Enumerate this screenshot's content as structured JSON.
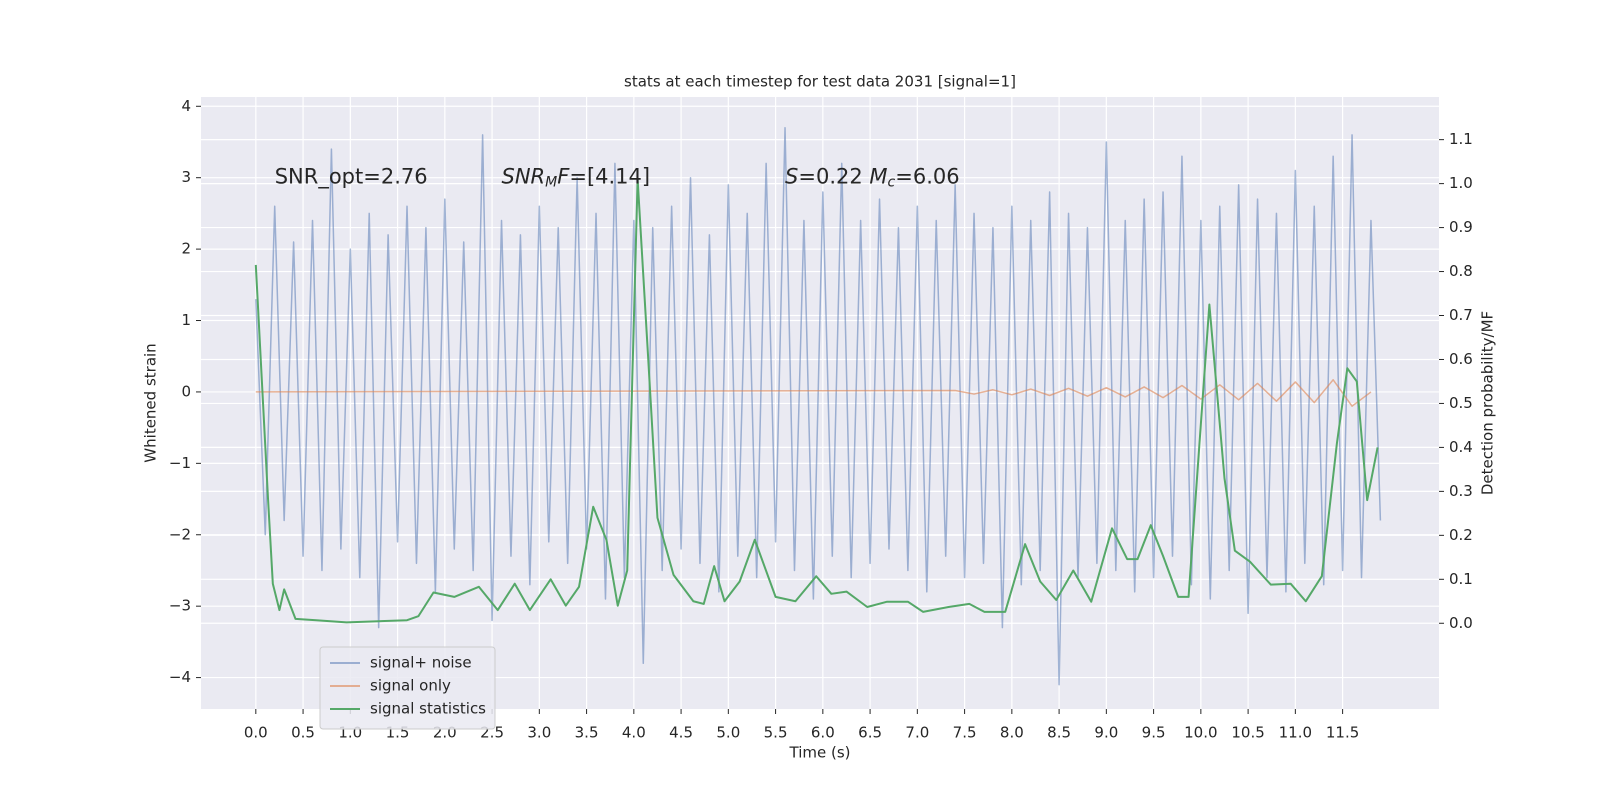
{
  "chart_data": {
    "type": "line",
    "title": "stats at each timestep for test data 2031 [signal=1]",
    "xlabel": "Time (s)",
    "ylabel": "Whitened strain",
    "y2label": "Detection probability/MF",
    "xlim": [
      -0.58,
      12.52
    ],
    "ylim": [
      -4.44,
      4.13
    ],
    "y2lim": [
      -0.195,
      1.197
    ],
    "xticks": [
      {
        "value": 0,
        "label": "0.0"
      },
      0.5,
      {
        "value": 1,
        "label": "1.0"
      },
      1.5,
      {
        "value": 2,
        "label": "2.0"
      },
      2.5,
      {
        "value": 3,
        "label": "3.0"
      },
      3.5,
      {
        "value": 4,
        "label": "4.0"
      },
      4.5,
      {
        "value": 5,
        "label": "5.0"
      },
      5.5,
      {
        "value": 6,
        "label": "6.0"
      },
      6.5,
      {
        "value": 7,
        "label": "7.0"
      },
      7.5,
      {
        "value": 8,
        "label": "8.0"
      },
      8.5,
      {
        "value": 9,
        "label": "9.0"
      },
      9.5,
      {
        "value": 10,
        "label": "10.0"
      },
      10.5,
      {
        "value": 11,
        "label": "11.0"
      },
      11.5
    ],
    "yticks": [
      {
        "value": -4,
        "label": "−4"
      },
      {
        "value": -3,
        "label": "−3"
      },
      {
        "value": -2,
        "label": "−2"
      },
      {
        "value": -1,
        "label": "−1"
      },
      0,
      1,
      2,
      3,
      4
    ],
    "y2ticks": [
      {
        "value": 0,
        "label": "0.0"
      },
      0.1,
      0.2,
      0.3,
      0.4,
      0.5,
      0.6,
      0.7,
      0.8,
      0.9,
      {
        "value": 1,
        "label": "1.0"
      },
      1.1
    ],
    "grid": true,
    "legend": "lower left",
    "annotations": [
      [
        "SNR_opt=2.76"
      ],
      [
        {
          "text": "SNR",
          "italic": true
        },
        {
          "text": "M",
          "sub": true
        },
        {
          "text": "F",
          "italic": true
        },
        "=[4.14]"
      ],
      [
        {
          "text": "S",
          "italic": true
        },
        "=0.22   ",
        {
          "text": "M",
          "italic": true
        },
        {
          "text": "c",
          "sub": true
        },
        "=6.06"
      ]
    ],
    "series": [
      {
        "name": "signal+ noise",
        "color": "#4c72b0",
        "opacity": 0.5,
        "x": [
          0,
          0.1,
          0.2,
          0.3,
          0.4,
          0.5,
          0.6,
          0.7,
          0.8,
          0.9,
          1,
          1.1,
          1.2,
          1.3,
          1.4,
          1.5,
          1.6,
          1.7,
          1.8,
          1.9,
          2,
          2.1,
          2.2,
          2.3,
          2.4,
          2.5,
          2.6,
          2.7,
          2.8,
          2.9,
          3,
          3.1,
          3.2,
          3.3,
          3.4,
          3.5,
          3.6,
          3.7,
          3.8,
          3.9,
          4,
          4.1,
          4.2,
          4.3,
          4.4,
          4.5,
          4.6,
          4.7,
          4.8,
          4.9,
          5,
          5.1,
          5.2,
          5.3,
          5.4,
          5.5,
          5.6,
          5.7,
          5.8,
          5.9,
          6,
          6.1,
          6.2,
          6.3,
          6.4,
          6.5,
          6.6,
          6.7,
          6.8,
          6.9,
          7,
          7.1,
          7.2,
          7.3,
          7.4,
          7.5,
          7.6,
          7.7,
          7.8,
          7.9,
          8,
          8.1,
          8.2,
          8.3,
          8.4,
          8.5,
          8.6,
          8.7,
          8.8,
          8.9,
          9,
          9.1,
          9.2,
          9.3,
          9.4,
          9.5,
          9.6,
          9.7,
          9.8,
          9.9,
          10,
          10.1,
          10.2,
          10.3,
          10.4,
          10.5,
          10.6,
          10.7,
          10.8,
          10.9,
          11,
          11.1,
          11.2,
          11.3,
          11.4,
          11.5,
          11.6,
          11.7,
          11.8,
          11.9
        ],
        "values": [
          1.3,
          -2.0,
          2.6,
          -1.8,
          2.1,
          -2.3,
          2.4,
          -2.5,
          3.4,
          -2.2,
          2.0,
          -2.6,
          2.5,
          -3.3,
          2.2,
          -2.1,
          2.6,
          -2.4,
          2.3,
          -2.8,
          2.7,
          -2.2,
          2.1,
          -2.5,
          3.6,
          -3.2,
          2.4,
          -2.3,
          2.2,
          -2.7,
          2.6,
          -2.1,
          2.3,
          -2.4,
          3.0,
          -2.2,
          2.5,
          -2.9,
          3.2,
          -2.6,
          2.4,
          -3.8,
          2.3,
          -2.5,
          2.6,
          -2.2,
          3.0,
          -2.4,
          2.2,
          -2.8,
          2.9,
          -2.3,
          2.5,
          -2.6,
          3.2,
          -2.1,
          3.7,
          -2.5,
          2.4,
          -2.9,
          2.8,
          -2.3,
          3.2,
          -2.6,
          2.4,
          -2.4,
          2.7,
          -2.2,
          2.3,
          -2.5,
          2.6,
          -2.8,
          2.4,
          -2.3,
          2.9,
          -2.6,
          2.5,
          -2.4,
          2.3,
          -3.3,
          2.6,
          -2.7,
          2.4,
          -2.5,
          2.8,
          -4.1,
          2.5,
          -2.6,
          2.3,
          -2.4,
          3.5,
          -2.5,
          2.4,
          -2.8,
          2.7,
          -2.6,
          2.8,
          -2.3,
          3.3,
          -2.7,
          2.4,
          -2.9,
          2.6,
          -2.5,
          2.9,
          -3.1,
          2.7,
          -2.6,
          2.5,
          -2.8,
          3.1,
          -2.4,
          2.6,
          -2.7,
          3.3,
          -2.5,
          3.6,
          -2.6,
          2.4,
          -1.8
        ]
      },
      {
        "name": "signal only",
        "color": "#dd8452",
        "opacity": 0.6,
        "x": [
          0,
          7.4,
          7.6,
          7.8,
          8,
          8.2,
          8.4,
          8.6,
          8.8,
          9,
          9.2,
          9.4,
          9.6,
          9.8,
          10,
          10.2,
          10.4,
          10.6,
          10.8,
          11,
          11.2,
          11.4,
          11.6,
          11.8
        ],
        "values": [
          0,
          0.02,
          -0.03,
          0.03,
          -0.04,
          0.04,
          -0.05,
          0.05,
          -0.06,
          0.06,
          -0.07,
          0.07,
          -0.08,
          0.09,
          -0.1,
          0.1,
          -0.11,
          0.12,
          -0.13,
          0.14,
          -0.15,
          0.17,
          -0.2,
          0
        ]
      },
      {
        "name": "signal statistics",
        "color": "#55a868",
        "opacity": 1,
        "axis": "y2",
        "x": [
          0,
          0.13,
          0.18,
          0.25,
          0.3,
          0.42,
          0.64,
          0.96,
          1.6,
          1.72,
          1.88,
          2.1,
          2.36,
          2.56,
          2.74,
          2.9,
          3.12,
          3.28,
          3.42,
          3.57,
          3.71,
          3.83,
          3.93,
          4.04,
          4.15,
          4.25,
          4.42,
          4.63,
          4.74,
          4.85,
          4.96,
          5.12,
          5.28,
          5.5,
          5.71,
          5.93,
          6.09,
          6.25,
          6.47,
          6.68,
          6.9,
          7.06,
          7.33,
          7.55,
          7.71,
          7.93,
          8.14,
          8.3,
          8.47,
          8.65,
          8.84,
          9.06,
          9.22,
          9.33,
          9.47,
          9.6,
          9.76,
          9.87,
          10.09,
          10.25,
          10.36,
          10.52,
          10.74,
          10.95,
          11.11,
          11.28,
          11.44,
          11.55,
          11.65,
          11.76,
          11.87
        ],
        "values": [
          0.815,
          0.28,
          0.09,
          0.03,
          0.077,
          0.01,
          0.007,
          0.002,
          0.007,
          0.016,
          0.07,
          0.06,
          0.083,
          0.03,
          0.09,
          0.03,
          0.1,
          0.04,
          0.083,
          0.265,
          0.19,
          0.04,
          0.12,
          1.01,
          0.61,
          0.24,
          0.11,
          0.05,
          0.044,
          0.13,
          0.05,
          0.095,
          0.19,
          0.06,
          0.05,
          0.107,
          0.067,
          0.072,
          0.037,
          0.049,
          0.049,
          0.026,
          0.037,
          0.044,
          0.026,
          0.026,
          0.18,
          0.095,
          0.053,
          0.12,
          0.049,
          0.216,
          0.146,
          0.146,
          0.223,
          0.153,
          0.06,
          0.06,
          0.725,
          0.33,
          0.165,
          0.14,
          0.088,
          0.09,
          0.05,
          0.107,
          0.41,
          0.58,
          0.55,
          0.28,
          0.4
        ]
      }
    ]
  }
}
